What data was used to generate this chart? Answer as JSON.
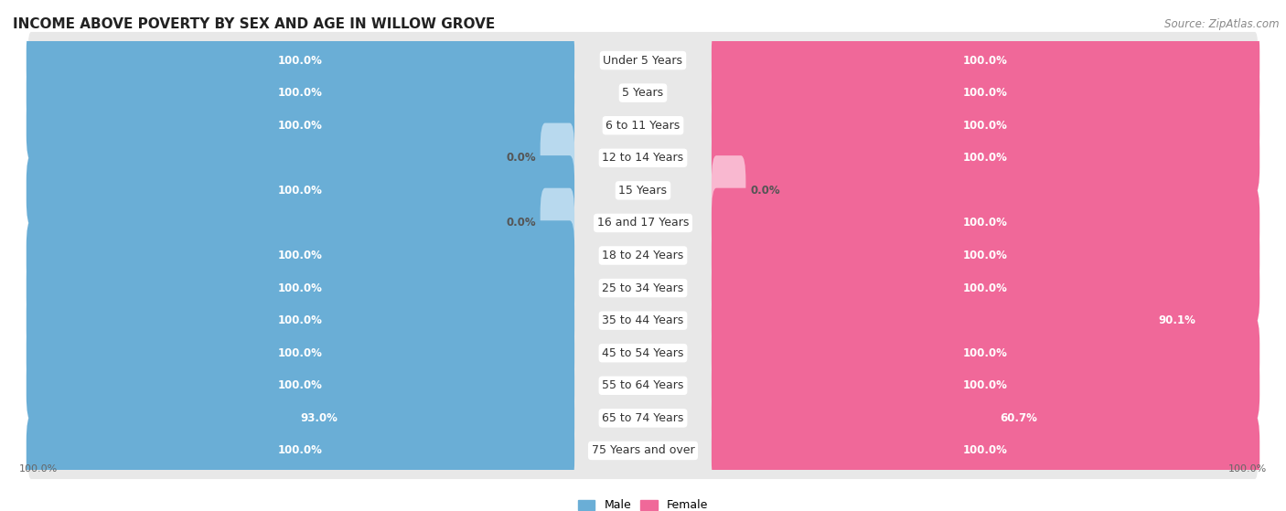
{
  "title": "INCOME ABOVE POVERTY BY SEX AND AGE IN WILLOW GROVE",
  "source": "Source: ZipAtlas.com",
  "categories": [
    "Under 5 Years",
    "5 Years",
    "6 to 11 Years",
    "12 to 14 Years",
    "15 Years",
    "16 and 17 Years",
    "18 to 24 Years",
    "25 to 34 Years",
    "35 to 44 Years",
    "45 to 54 Years",
    "55 to 64 Years",
    "65 to 74 Years",
    "75 Years and over"
  ],
  "male_values": [
    100.0,
    100.0,
    100.0,
    0.0,
    100.0,
    0.0,
    100.0,
    100.0,
    100.0,
    100.0,
    100.0,
    93.0,
    100.0
  ],
  "female_values": [
    100.0,
    100.0,
    100.0,
    100.0,
    0.0,
    100.0,
    100.0,
    100.0,
    90.1,
    100.0,
    100.0,
    60.7,
    100.0
  ],
  "male_color": "#6aaed6",
  "male_color_light": "#b8d9ee",
  "female_color": "#f06899",
  "female_color_light": "#f9b8d0",
  "male_label": "Male",
  "female_label": "Female",
  "background_color": "#ffffff",
  "row_bg_color": "#e8e8e8",
  "bar_height": 0.55,
  "value_fontsize": 8.5,
  "label_fontsize": 9.0,
  "title_fontsize": 11,
  "source_fontsize": 8.5
}
